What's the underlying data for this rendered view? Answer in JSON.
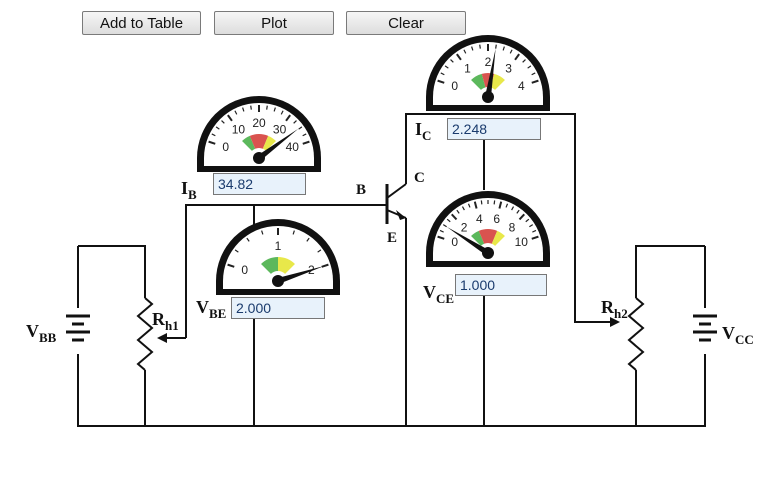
{
  "toolbar": {
    "add_label": "Add to Table",
    "plot_label": "Plot",
    "clear_label": "Clear"
  },
  "meters": {
    "ib": {
      "label": "I",
      "sub": "B",
      "value": "34.82",
      "scale_max": 40,
      "ticks": [
        "0",
        "10",
        "20",
        "30",
        "40"
      ],
      "reading": 34.82
    },
    "vbe": {
      "label": "V",
      "sub": "BE",
      "value": "2.000",
      "scale_max": 2,
      "ticks": [
        "0",
        "1",
        "2"
      ],
      "reading": 2.0
    },
    "ic": {
      "label": "I",
      "sub": "C",
      "value": "2.248",
      "scale_max": 4,
      "ticks": [
        "0",
        "1",
        "2",
        "3",
        "4"
      ],
      "reading": 2.248
    },
    "vce": {
      "label": "V",
      "sub": "CE",
      "value": "1.000",
      "scale_max": 10,
      "ticks": [
        "0",
        "2",
        "4",
        "6",
        "8",
        "10"
      ],
      "reading": 1.0
    }
  },
  "transistor": {
    "base": "B",
    "collector": "C",
    "emitter": "E"
  },
  "sources": {
    "vbb": {
      "label": "V",
      "sub": "BB"
    },
    "vcc": {
      "label": "V",
      "sub": "CC"
    },
    "rh1": {
      "label": "R",
      "sub": "h1"
    },
    "rh2": {
      "label": "R",
      "sub": "h2"
    }
  },
  "colors": {
    "green": "#5cb85c",
    "red": "#d9534f",
    "yellow": "#e8e84a",
    "readout_bg": "#e8f2fb"
  }
}
